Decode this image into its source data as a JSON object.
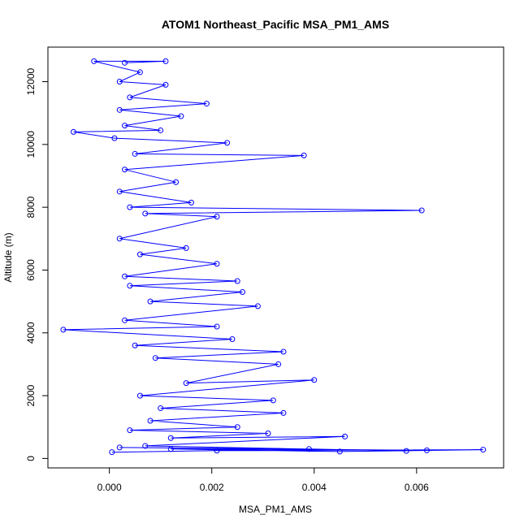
{
  "chart_data": {
    "type": "line",
    "title": "ATOM1 Northeast_Pacific MSA_PM1_AMS",
    "xlabel": "MSA_PM1_AMS",
    "ylabel": "Altitude (m)",
    "xlim": [
      -0.0012,
      0.0077
    ],
    "ylim": [
      -300,
      13100
    ],
    "x_ticks": [
      0.0,
      0.002,
      0.004,
      0.006
    ],
    "x_tick_labels": [
      "0.000",
      "0.002",
      "0.004",
      "0.006"
    ],
    "y_ticks": [
      0,
      2000,
      4000,
      6000,
      8000,
      10000,
      12000
    ],
    "y_tick_labels": [
      "0",
      "2000",
      "4000",
      "6000",
      "8000",
      "10000",
      "12000"
    ],
    "grid": false,
    "legend": "none",
    "series_color": "#0000ff",
    "marker": "open-circle",
    "series": [
      {
        "values": [
          [
            5e-05,
            200
          ],
          [
            0.0021,
            250
          ],
          [
            0.0073,
            280
          ],
          [
            0.0045,
            220
          ],
          [
            0.0012,
            300
          ],
          [
            0.0062,
            260
          ],
          [
            0.0002,
            350
          ],
          [
            0.0039,
            300
          ],
          [
            0.0058,
            240
          ],
          [
            0.0007,
            400
          ],
          [
            0.0046,
            700
          ],
          [
            0.0012,
            650
          ],
          [
            0.0031,
            800
          ],
          [
            0.0004,
            900
          ],
          [
            0.0025,
            1000
          ],
          [
            0.0008,
            1200
          ],
          [
            0.0034,
            1450
          ],
          [
            0.001,
            1600
          ],
          [
            0.0032,
            1850
          ],
          [
            0.0006,
            2000
          ],
          [
            0.004,
            2500
          ],
          [
            0.0015,
            2400
          ],
          [
            0.0033,
            3000
          ],
          [
            0.0009,
            3200
          ],
          [
            0.0034,
            3400
          ],
          [
            0.0005,
            3600
          ],
          [
            0.0024,
            3800
          ],
          [
            -0.0009,
            4100
          ],
          [
            0.0021,
            4200
          ],
          [
            0.0003,
            4400
          ],
          [
            0.0029,
            4850
          ],
          [
            0.0008,
            5000
          ],
          [
            0.0026,
            5300
          ],
          [
            0.0004,
            5500
          ],
          [
            0.0025,
            5650
          ],
          [
            0.0003,
            5800
          ],
          [
            0.0021,
            6200
          ],
          [
            0.0006,
            6500
          ],
          [
            0.0015,
            6700
          ],
          [
            0.0002,
            7000
          ],
          [
            0.0021,
            7700
          ],
          [
            0.0007,
            7800
          ],
          [
            0.0061,
            7900
          ],
          [
            0.0004,
            8000
          ],
          [
            0.0016,
            8150
          ],
          [
            0.0002,
            8500
          ],
          [
            0.0013,
            8800
          ],
          [
            0.0003,
            9200
          ],
          [
            0.0038,
            9650
          ],
          [
            0.0005,
            9700
          ],
          [
            0.0023,
            10050
          ],
          [
            0.0001,
            10200
          ],
          [
            -0.0007,
            10400
          ],
          [
            0.001,
            10450
          ],
          [
            0.0003,
            10600
          ],
          [
            0.0014,
            10900
          ],
          [
            0.0002,
            11100
          ],
          [
            0.0019,
            11300
          ],
          [
            0.0004,
            11500
          ],
          [
            0.0011,
            11900
          ],
          [
            0.0002,
            12000
          ],
          [
            0.0006,
            12300
          ],
          [
            -0.0003,
            12650
          ],
          [
            0.0011,
            12650
          ],
          [
            0.0003,
            12600
          ]
        ]
      }
    ]
  }
}
